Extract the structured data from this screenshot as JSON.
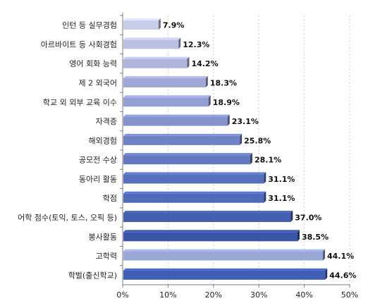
{
  "chart_data": {
    "type": "bar",
    "orientation": "horizontal",
    "categories": [
      "인턴 등 실무경험",
      "아르바이트 등 사회경험",
      "영어 회화 능력",
      "제 2 외국어",
      "학교 외 외부 교육 이수",
      "자격증",
      "해외경험",
      "공모전 수상",
      "동아리 활동",
      "학점",
      "어학 점수(토익, 토스, 오픽 등)",
      "봉사활동",
      "고학력",
      "학벌(출신학교)"
    ],
    "values": [
      7.9,
      12.3,
      14.2,
      18.3,
      18.9,
      23.1,
      25.8,
      28.1,
      31.1,
      31.1,
      37.0,
      38.5,
      44.1,
      44.6
    ],
    "value_labels": [
      "7.9%",
      "12.3%",
      "14.2%",
      "18.3%",
      "18.9%",
      "23.1%",
      "25.8%",
      "28.1%",
      "31.1%",
      "31.1%",
      "37.0%",
      "38.5%",
      "44.1%",
      "44.6%"
    ],
    "bar_colors": [
      "#c8cde8",
      "#b9c0e2",
      "#aeb6dd",
      "#a0a9d6",
      "#93a0d3",
      "#8493cc",
      "#6f83c6",
      "#6279c0",
      "#5570bc",
      "#4f6ab8",
      "#4460b0",
      "#3a55a6",
      "#9aa8d8",
      "#3f5fb6"
    ],
    "xlim": [
      0,
      50
    ],
    "x_ticks": [
      0,
      10,
      20,
      30,
      40,
      50
    ],
    "x_tick_labels": [
      "0%",
      "10%",
      "20%",
      "30%",
      "40%",
      "50%"
    ],
    "grid": true,
    "title": "",
    "xlabel": "",
    "ylabel": ""
  }
}
